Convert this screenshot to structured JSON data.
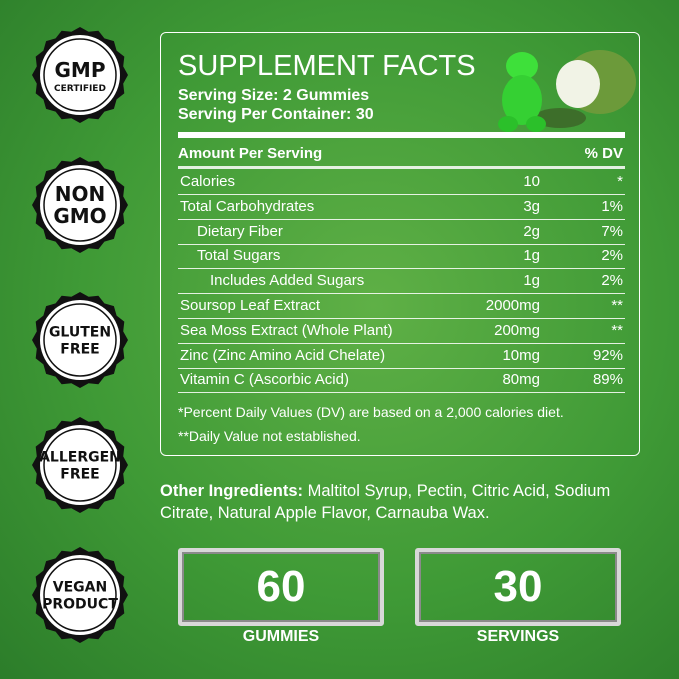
{
  "badges": [
    {
      "lines": [
        "GMP",
        "CERTIFIED"
      ]
    },
    {
      "lines": [
        "NON",
        "GMO"
      ]
    },
    {
      "lines": [
        "GLUTEN",
        "FREE"
      ]
    },
    {
      "lines": [
        "ALLERGEN",
        "FREE"
      ]
    },
    {
      "lines": [
        "VEGAN",
        "PRODUCT"
      ]
    }
  ],
  "facts": {
    "title": "SUPPLEMENT FACTS",
    "serving_size": "Serving Size: 2 Gummies",
    "servings_per_container": "Serving Per Container: 30",
    "header": [
      "Amount Per Serving",
      "% DV"
    ],
    "rows": [
      [
        "Calories",
        "10",
        "*"
      ],
      [
        "Total Carbohydrates",
        "3g",
        "1%"
      ],
      [
        "Dietary Fiber",
        "2g",
        "7%"
      ],
      [
        "Total Sugars",
        "1g",
        "2%"
      ],
      [
        "Includes Added Sugars",
        "1g",
        "2%"
      ],
      [
        "Soursop Leaf Extract",
        "2000mg",
        "**"
      ],
      [
        "Sea Moss Extract (Whole Plant)",
        "200mg",
        "**"
      ],
      [
        "Zinc (Zinc Amino Acid Chelate)",
        "10mg",
        "92%"
      ],
      [
        "Vitamin C (Ascorbic Acid)",
        "80mg",
        "89%"
      ]
    ],
    "footnotes": [
      "*Percent Daily Values (DV) are based on a 2,000 calories diet.",
      "**Daily Value not established."
    ]
  },
  "other_ingredients": {
    "label": "Other Ingredients:",
    "text": "Maltitol Syrup, Pectin, Citric Acid, Sodium Citrate, Natural Apple Flavor, Carnauba Wax."
  },
  "counts": [
    {
      "number": "60",
      "label": "GUMMIES"
    },
    {
      "number": "30",
      "label": "SERVINGS"
    }
  ]
}
